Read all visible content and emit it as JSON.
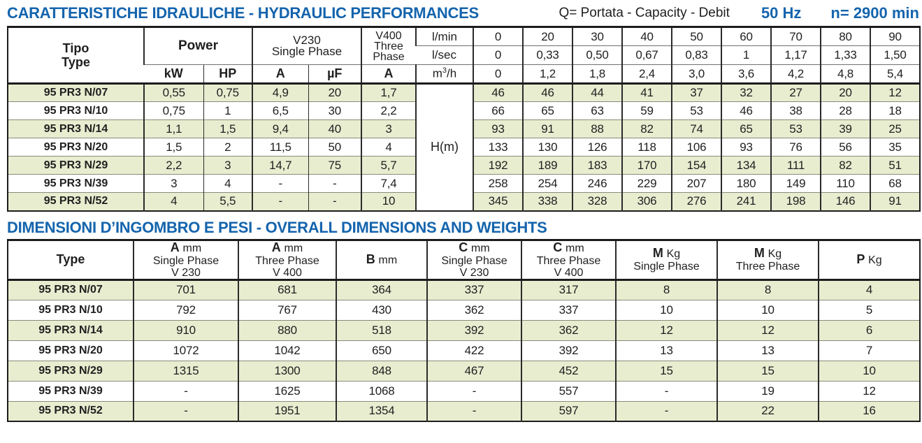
{
  "table1": {
    "title": "CARATTERISTICHE IDRAULICHE - HYDRAULIC PERFORMANCES",
    "legend": "Q= Portata - Capacity - Debit",
    "frequency": "50 Hz",
    "speed": "n= 2900 min",
    "header": {
      "tipo": "Tipo",
      "type": "Type",
      "power": "Power",
      "kw": "kW",
      "hp": "HP",
      "v230_line1": "V230",
      "v230_line2": "Single Phase",
      "a230": "A",
      "uf": "µF",
      "v400_line1": "V400",
      "v400_line2": "Three",
      "v400_line3": "Phase",
      "a400": "A",
      "lmin": "l/min",
      "lsec": "l/sec",
      "m3h_m": "m",
      "m3h_sup": "3",
      "m3h_rest": "/h"
    },
    "flow": {
      "lmin": [
        "0",
        "20",
        "30",
        "40",
        "50",
        "60",
        "70",
        "80",
        "90"
      ],
      "lsec": [
        "0",
        "0,33",
        "0,50",
        "0,67",
        "0,83",
        "1",
        "1,17",
        "1,33",
        "1,50"
      ],
      "m3h": [
        "0",
        "1,2",
        "1,8",
        "2,4",
        "3,0",
        "3,6",
        "4,2",
        "4,8",
        "5,4"
      ]
    },
    "hm_label": "H(m)",
    "rows": [
      {
        "type": "95 PR3 N/07",
        "left": [
          "0,55",
          "0,75",
          "4,9",
          "20",
          "1,7"
        ],
        "h": [
          "46",
          "46",
          "44",
          "41",
          "37",
          "32",
          "27",
          "20",
          "12"
        ]
      },
      {
        "type": "95 PR3 N/10",
        "left": [
          "0,75",
          "1",
          "6,5",
          "30",
          "2,2"
        ],
        "h": [
          "66",
          "65",
          "63",
          "59",
          "53",
          "46",
          "38",
          "28",
          "18"
        ]
      },
      {
        "type": "95 PR3 N/14",
        "left": [
          "1,1",
          "1,5",
          "9,4",
          "40",
          "3"
        ],
        "h": [
          "93",
          "91",
          "88",
          "82",
          "74",
          "65",
          "53",
          "39",
          "25"
        ]
      },
      {
        "type": "95 PR3 N/20",
        "left": [
          "1,5",
          "2",
          "11,5",
          "50",
          "4"
        ],
        "h": [
          "133",
          "130",
          "126",
          "118",
          "106",
          "93",
          "76",
          "56",
          "35"
        ]
      },
      {
        "type": "95 PR3 N/29",
        "left": [
          "2,2",
          "3",
          "14,7",
          "75",
          "5,7"
        ],
        "h": [
          "192",
          "189",
          "183",
          "170",
          "154",
          "134",
          "111",
          "82",
          "51"
        ]
      },
      {
        "type": "95 PR3 N/39",
        "left": [
          "3",
          "4",
          "-",
          "-",
          "7,4"
        ],
        "h": [
          "258",
          "254",
          "246",
          "229",
          "207",
          "180",
          "149",
          "110",
          "68"
        ]
      },
      {
        "type": "95 PR3 N/52",
        "left": [
          "4",
          "5,5",
          "-",
          "-",
          "10"
        ],
        "h": [
          "345",
          "338",
          "328",
          "306",
          "276",
          "241",
          "198",
          "146",
          "91"
        ]
      }
    ]
  },
  "table2": {
    "title": "DIMENSIONI D’INGOMBRO E PESI - OVERALL DIMENSIONS AND WEIGHTS",
    "columns": [
      {
        "sym": "Type",
        "unit": "",
        "lines": []
      },
      {
        "sym": "A",
        "unit": "mm",
        "lines": [
          "Single Phase",
          "V 230"
        ]
      },
      {
        "sym": "A",
        "unit": "mm",
        "lines": [
          "Three Phase",
          "V 400"
        ]
      },
      {
        "sym": "B",
        "unit": "mm",
        "lines": []
      },
      {
        "sym": "C",
        "unit": "mm",
        "lines": [
          "Single Phase",
          "V 230"
        ]
      },
      {
        "sym": "C",
        "unit": "mm",
        "lines": [
          "Three Phase",
          "V 400"
        ]
      },
      {
        "sym": "M",
        "unit": "Kg",
        "lines": [
          "Single Phase"
        ]
      },
      {
        "sym": "M",
        "unit": "Kg",
        "lines": [
          "Three Phase"
        ]
      },
      {
        "sym": "P",
        "unit": "Kg",
        "lines": []
      }
    ],
    "rows": [
      {
        "type": "95 PR3 N/07",
        "vals": [
          "701",
          "681",
          "364",
          "337",
          "317",
          "8",
          "8",
          "4"
        ]
      },
      {
        "type": "95 PR3 N/10",
        "vals": [
          "792",
          "767",
          "430",
          "362",
          "337",
          "10",
          "10",
          "5"
        ]
      },
      {
        "type": "95 PR3 N/14",
        "vals": [
          "910",
          "880",
          "518",
          "392",
          "362",
          "12",
          "12",
          "6"
        ]
      },
      {
        "type": "95 PR3 N/20",
        "vals": [
          "1072",
          "1042",
          "650",
          "422",
          "392",
          "13",
          "13",
          "7"
        ]
      },
      {
        "type": "95 PR3 N/29",
        "vals": [
          "1315",
          "1300",
          "848",
          "467",
          "452",
          "15",
          "15",
          "10"
        ]
      },
      {
        "type": "95 PR3 N/39",
        "vals": [
          "-",
          "1625",
          "1068",
          "-",
          "557",
          "-",
          "19",
          "12"
        ]
      },
      {
        "type": "95 PR3 N/52",
        "vals": [
          "-",
          "1951",
          "1354",
          "-",
          "597",
          "-",
          "22",
          "16"
        ]
      }
    ]
  }
}
